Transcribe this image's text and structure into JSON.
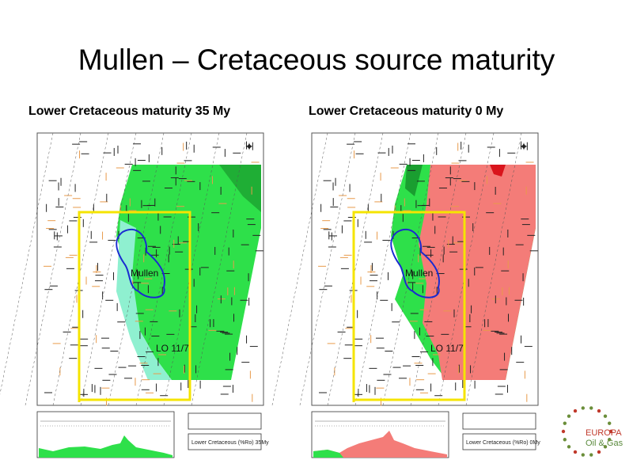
{
  "title": "Mullen – Cretaceous source maturity",
  "panels": [
    {
      "heading": "Lower Cretaceous maturity 35 My",
      "field_label": "Mullen",
      "licence_label": "LO 11/7",
      "legend_text": "Lower Cretaceous (%Ro) 35My"
    },
    {
      "heading": "Lower Cretaceous maturity 0 My",
      "field_label": "Mullen",
      "licence_label": "LO 11/7",
      "legend_text": "Lower Cretaceous (%Ro) 0My"
    }
  ],
  "logo": {
    "name": "EUROPA",
    "tagline": "Oil & Gas"
  }
}
